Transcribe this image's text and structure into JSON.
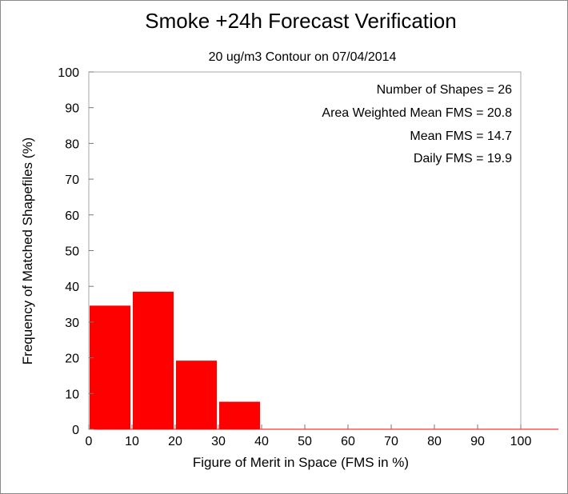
{
  "chart_data": {
    "type": "bar",
    "title": "Smoke +24h Forecast Verification",
    "subtitle": "20 ug/m3 Contour on 07/04/2014",
    "xlabel": "Figure of Merit in Space (FMS in %)",
    "ylabel": "Frequency of Matched Shapefiles (%)",
    "xlim": [
      0,
      100
    ],
    "ylim": [
      0,
      100
    ],
    "xticks": [
      "0",
      "10",
      "20",
      "30",
      "40",
      "50",
      "60",
      "70",
      "80",
      "90",
      "100"
    ],
    "yticks": [
      "0",
      "10",
      "20",
      "30",
      "40",
      "50",
      "60",
      "70",
      "80",
      "90",
      "100"
    ],
    "bin_width": 10,
    "bins": [
      0,
      10,
      20,
      30,
      40,
      50,
      60,
      70,
      80,
      90
    ],
    "values": [
      34.6,
      38.5,
      19.2,
      7.7,
      0,
      0,
      0,
      0,
      0,
      0
    ],
    "bar_color": "#ff0000",
    "grid": false,
    "annotations": [
      "Number of Shapes = 26",
      "Area Weighted Mean FMS = 20.8",
      "Mean FMS = 14.7",
      "Daily FMS = 19.9"
    ]
  }
}
